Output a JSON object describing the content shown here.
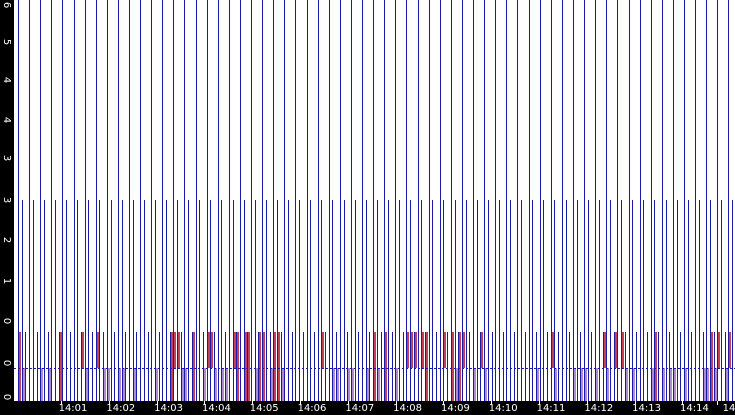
{
  "y_axis": {
    "labels": [
      "0",
      "0",
      "0",
      "1",
      "2",
      "3",
      "3",
      "4",
      "4",
      "5",
      "6"
    ]
  },
  "x_axis": {
    "labels": [
      "14:01",
      "14:02",
      "14:03",
      "14:04",
      "14:05",
      "14:06",
      "14:07",
      "14:08",
      "14:09",
      "14:10",
      "14:11",
      "14:12",
      "14:13",
      "14:14",
      "14"
    ]
  }
}
